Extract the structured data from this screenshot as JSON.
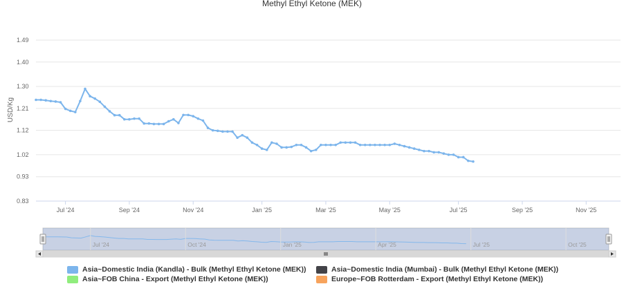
{
  "chart_data": {
    "type": "line",
    "title": "Methyl Ethyl Ketone (MEK)",
    "xlabel": "",
    "ylabel": "USD/Kg",
    "yticks": [
      "1.49",
      "1.40",
      "1.30",
      "1.21",
      "1.12",
      "1.02",
      "0.93",
      "0.83"
    ],
    "ylim": [
      0.83,
      1.49
    ],
    "xlim": [
      0,
      119
    ],
    "grid": true,
    "x_ticks": [
      {
        "label": "Jul '24",
        "x": 6
      },
      {
        "label": "Sep '24",
        "x": 19
      },
      {
        "label": "Nov '24",
        "x": 32
      },
      {
        "label": "Jan '25",
        "x": 46
      },
      {
        "label": "Mar '25",
        "x": 59
      },
      {
        "label": "May '25",
        "x": 72
      },
      {
        "label": "Jul '25",
        "x": 86
      },
      {
        "label": "Sep '25",
        "x": 99
      },
      {
        "label": "Nov '25",
        "x": 112
      }
    ],
    "navigator_ticks": [
      "Jul '24",
      "Oct '24",
      "Jan '25",
      "Apr '25",
      "Jul '25",
      "Oct '25"
    ],
    "series": [
      {
        "name": "Asia~Domestic India (Kandla) - Bulk (Methyl Ethyl Ketone (MEK))",
        "color": "#7cb5ec",
        "points": [
          [
            0,
            1.245
          ],
          [
            1,
            1.245
          ],
          [
            2,
            1.243
          ],
          [
            3,
            1.24
          ],
          [
            4,
            1.238
          ],
          [
            5,
            1.235
          ],
          [
            6,
            1.208
          ],
          [
            7,
            1.2
          ],
          [
            8,
            1.195
          ],
          [
            9,
            1.24
          ],
          [
            10,
            1.29
          ],
          [
            11,
            1.26
          ],
          [
            12,
            1.25
          ],
          [
            13,
            1.237
          ],
          [
            14,
            1.217
          ],
          [
            15,
            1.198
          ],
          [
            16,
            1.182
          ],
          [
            17,
            1.182
          ],
          [
            18,
            1.165
          ],
          [
            19,
            1.165
          ],
          [
            20,
            1.168
          ],
          [
            21,
            1.168
          ],
          [
            22,
            1.148
          ],
          [
            23,
            1.148
          ],
          [
            24,
            1.146
          ],
          [
            25,
            1.146
          ],
          [
            26,
            1.146
          ],
          [
            27,
            1.157
          ],
          [
            28,
            1.165
          ],
          [
            29,
            1.15
          ],
          [
            30,
            1.183
          ],
          [
            31,
            1.183
          ],
          [
            32,
            1.178
          ],
          [
            33,
            1.168
          ],
          [
            34,
            1.16
          ],
          [
            35,
            1.13
          ],
          [
            36,
            1.12
          ],
          [
            37,
            1.118
          ],
          [
            38,
            1.115
          ],
          [
            39,
            1.115
          ],
          [
            40,
            1.115
          ],
          [
            41,
            1.09
          ],
          [
            42,
            1.1
          ],
          [
            43,
            1.09
          ],
          [
            44,
            1.07
          ],
          [
            45,
            1.06
          ],
          [
            46,
            1.045
          ],
          [
            47,
            1.04
          ],
          [
            48,
            1.07
          ],
          [
            49,
            1.065
          ],
          [
            50,
            1.05
          ],
          [
            51,
            1.05
          ],
          [
            52,
            1.052
          ],
          [
            53,
            1.06
          ],
          [
            54,
            1.06
          ],
          [
            55,
            1.05
          ],
          [
            56,
            1.035
          ],
          [
            57,
            1.04
          ],
          [
            58,
            1.06
          ],
          [
            59,
            1.06
          ],
          [
            60,
            1.06
          ],
          [
            61,
            1.06
          ],
          [
            62,
            1.07
          ],
          [
            63,
            1.07
          ],
          [
            64,
            1.07
          ],
          [
            65,
            1.07
          ],
          [
            66,
            1.06
          ],
          [
            67,
            1.06
          ],
          [
            68,
            1.06
          ],
          [
            69,
            1.06
          ],
          [
            70,
            1.06
          ],
          [
            71,
            1.06
          ],
          [
            72,
            1.06
          ],
          [
            73,
            1.065
          ],
          [
            74,
            1.06
          ],
          [
            75,
            1.055
          ],
          [
            76,
            1.05
          ],
          [
            77,
            1.045
          ],
          [
            78,
            1.04
          ],
          [
            79,
            1.035
          ],
          [
            80,
            1.035
          ],
          [
            81,
            1.03
          ],
          [
            82,
            1.03
          ],
          [
            83,
            1.025
          ],
          [
            84,
            1.02
          ],
          [
            85,
            1.02
          ],
          [
            86,
            1.01
          ],
          [
            87,
            1.01
          ],
          [
            88,
            0.995
          ],
          [
            89,
            0.992
          ]
        ]
      }
    ]
  },
  "legend": {
    "kandla": "Asia~Domestic India (Kandla) - Bulk (Methyl Ethyl Ketone (MEK))",
    "mumbai": "Asia~Domestic India (Mumbai) - Bulk (Methyl Ethyl Ketone (MEK))",
    "china": "Asia~FOB China - Export (Methyl Ethyl Ketone (MEK))",
    "rotterdam": "Europe~FOB Rotterdam - Export (Methyl Ethyl Ketone (MEK))"
  },
  "colors": {
    "kandla": "#7cb5ec",
    "mumbai": "#434348",
    "china": "#90ed7d",
    "rotterdam": "#f7a35c"
  }
}
